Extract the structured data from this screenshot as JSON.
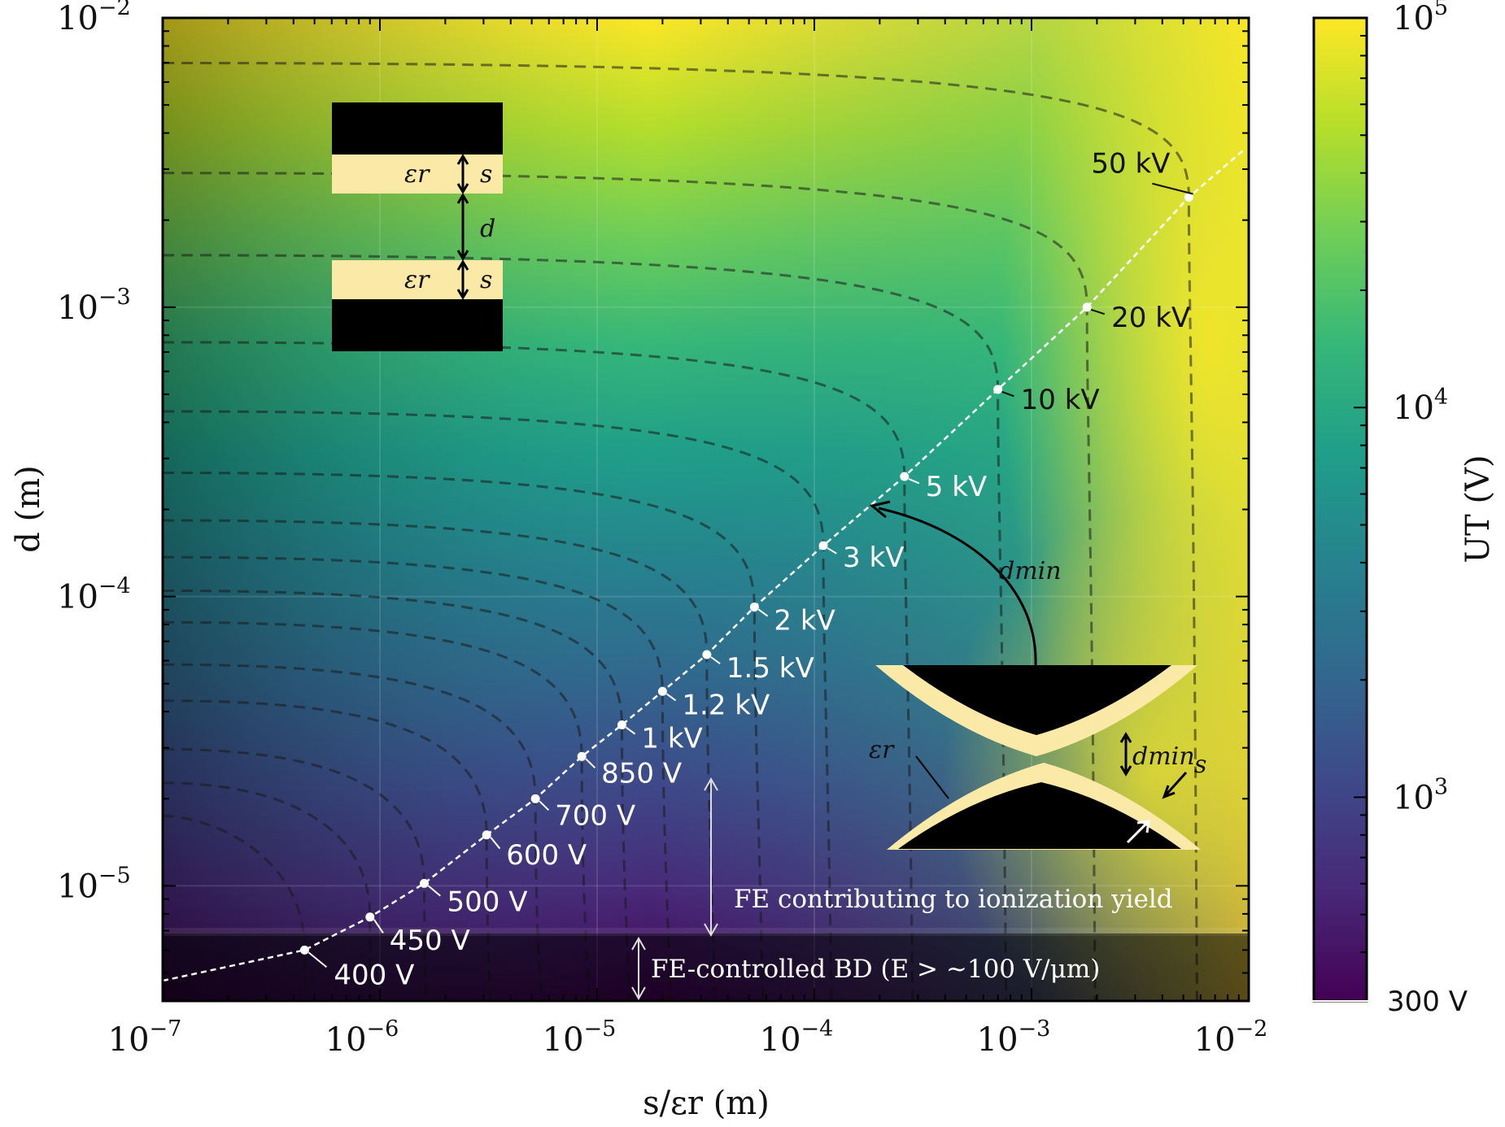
{
  "chart_data": {
    "type": "heatmap",
    "title": "",
    "xlabel": "s/εr (m)",
    "ylabel": "d (m)",
    "xscale": "log",
    "yscale": "log",
    "xlim": [
      1e-07,
      0.01
    ],
    "ylim": [
      4e-06,
      0.01
    ],
    "x_ticks": [
      {
        "base": "10",
        "exp": "−7"
      },
      {
        "base": "10",
        "exp": "−6"
      },
      {
        "base": "10",
        "exp": "−5"
      },
      {
        "base": "10",
        "exp": "−4"
      },
      {
        "base": "10",
        "exp": "−3"
      },
      {
        "base": "10",
        "exp": "−2"
      }
    ],
    "y_ticks": [
      {
        "base": "10",
        "exp": "−5"
      },
      {
        "base": "10",
        "exp": "−4"
      },
      {
        "base": "10",
        "exp": "−3"
      },
      {
        "base": "10",
        "exp": "−2"
      }
    ],
    "grid": true,
    "colorbar": {
      "label": "UT (V)",
      "scale": "log",
      "range": [
        300,
        100000
      ],
      "colormap": "viridis",
      "colors": [
        "#440154",
        "#482878",
        "#3e4989",
        "#31688e",
        "#26828e",
        "#1f9e89",
        "#35b779",
        "#6ece58",
        "#b5de2b",
        "#fde725"
      ],
      "ticks": [
        {
          "base": "10",
          "exp": "3"
        },
        {
          "base": "10",
          "exp": "4"
        },
        {
          "base": "10",
          "exp": "5"
        }
      ],
      "min_label": "300 V"
    },
    "dmin_curve": {
      "label": "dmin",
      "points": [
        {
          "x": 4.5e-07,
          "y": 6e-06,
          "label": "400 V"
        },
        {
          "x": 9e-07,
          "y": 7.8e-06,
          "label": "450 V"
        },
        {
          "x": 1.6e-06,
          "y": 1.02e-05,
          "label": "500 V"
        },
        {
          "x": 3.1e-06,
          "y": 1.5e-05,
          "label": "600 V"
        },
        {
          "x": 5.2e-06,
          "y": 2e-05,
          "label": "700 V"
        },
        {
          "x": 8.5e-06,
          "y": 2.8e-05,
          "label": "850 V"
        },
        {
          "x": 1.3e-05,
          "y": 3.6e-05,
          "label": "1 kV"
        },
        {
          "x": 2e-05,
          "y": 4.7e-05,
          "label": "1.2 kV"
        },
        {
          "x": 3.2e-05,
          "y": 6.3e-05,
          "label": "1.5 kV"
        },
        {
          "x": 5.3e-05,
          "y": 9.2e-05,
          "label": "2 kV"
        },
        {
          "x": 0.00011,
          "y": 0.00015,
          "label": "3 kV"
        },
        {
          "x": 0.00026,
          "y": 0.00026,
          "label": "5 kV"
        },
        {
          "x": 0.0007,
          "y": 0.00052,
          "label": "10 kV"
        },
        {
          "x": 0.0018,
          "y": 0.001,
          "label": "20 kV"
        },
        {
          "x": 0.0053,
          "y": 0.0024,
          "label": "50 kV"
        }
      ]
    },
    "annotations": {
      "fe_yield": "FE contributing to ionization yield",
      "fe_bd": "FE-controlled BD (E > ~100 V/μm)",
      "inset_planar": {
        "eps": "εr",
        "s": "s",
        "d": "d"
      },
      "inset_curved": {
        "eps": "εr",
        "dmin": "dmin",
        "s": "s"
      }
    }
  }
}
